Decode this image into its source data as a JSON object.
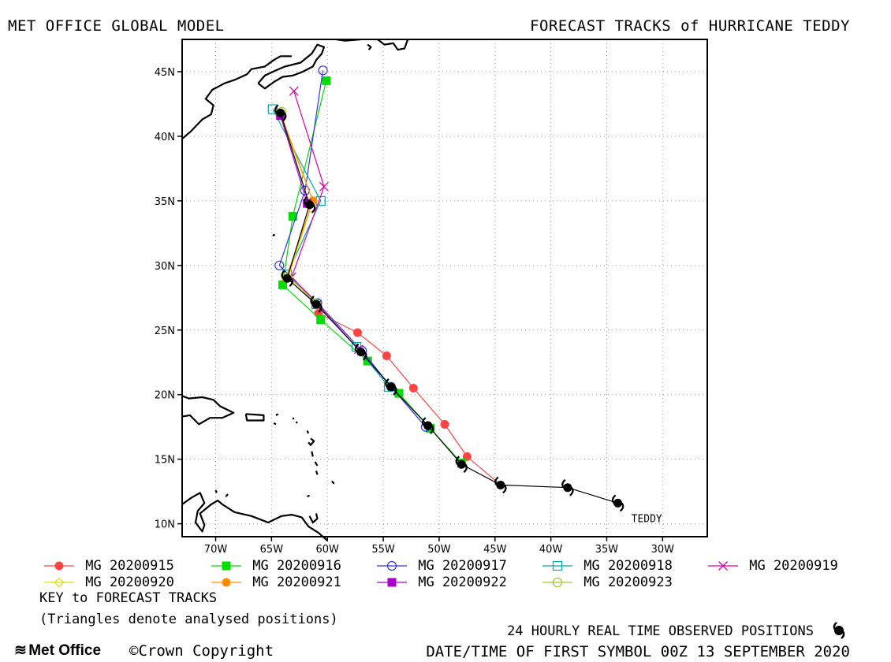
{
  "header": {
    "left_title": "MET OFFICE GLOBAL MODEL",
    "right_title": "FORECAST TRACKS of HURRICANE TEDDY"
  },
  "chart_data": {
    "type": "line",
    "title": "FORECAST TRACKS of HURRICANE TEDDY",
    "xlim": [
      -73,
      -26
    ],
    "ylim": [
      9,
      47.5
    ],
    "x_ticks": [
      -70,
      -65,
      -60,
      -55,
      -50,
      -45,
      -40,
      -35,
      -30
    ],
    "x_tick_labels": [
      "70W",
      "65W",
      "60W",
      "55W",
      "50W",
      "45W",
      "40W",
      "35W",
      "30W"
    ],
    "y_ticks": [
      10,
      15,
      20,
      25,
      30,
      35,
      40,
      45
    ],
    "y_tick_labels": [
      "10N",
      "15N",
      "20N",
      "25N",
      "30N",
      "35N",
      "40N",
      "45N"
    ],
    "grid": true,
    "storm_label": "TEDDY",
    "observed": {
      "name": "24 HOURLY REAL TIME OBSERVED POSITIONS",
      "points": [
        [
          -34.0,
          11.6
        ],
        [
          -38.5,
          12.8
        ],
        [
          -44.5,
          13.0
        ],
        [
          -48.0,
          14.6
        ],
        [
          -51.0,
          17.6
        ],
        [
          -54.3,
          20.6
        ],
        [
          -57.0,
          23.3
        ],
        [
          -61.0,
          27.0
        ],
        [
          -63.6,
          29.0
        ],
        [
          -61.6,
          34.7
        ],
        [
          -64.2,
          41.8
        ]
      ],
      "color": "#000000"
    },
    "series": [
      {
        "name": "MG 20200915",
        "color": "#ff4444",
        "marker": "filled-circle",
        "points": [
          [
            -47.5,
            15.2
          ],
          [
            -49.5,
            17.7
          ],
          [
            -52.3,
            20.5
          ],
          [
            -54.7,
            23.0
          ],
          [
            -57.3,
            24.8
          ],
          [
            -60.8,
            26.3
          ]
        ]
      },
      {
        "name": "MG 20200916",
        "color": "#00dd00",
        "marker": "filled-square",
        "points": [
          [
            -48.0,
            14.7
          ],
          [
            -50.8,
            17.4
          ],
          [
            -53.6,
            20.1
          ],
          [
            -56.4,
            22.6
          ],
          [
            -60.6,
            25.8
          ],
          [
            -64.0,
            28.5
          ],
          [
            -63.1,
            33.8
          ],
          [
            -60.1,
            44.3
          ]
        ]
      },
      {
        "name": "MG 20200917",
        "color": "#3333ee",
        "marker": "open-circle",
        "points": [
          [
            -51.2,
            17.5
          ],
          [
            -54.3,
            20.6
          ],
          [
            -56.9,
            23.4
          ],
          [
            -60.9,
            27.1
          ],
          [
            -64.3,
            30.0
          ],
          [
            -62.0,
            35.8
          ],
          [
            -60.4,
            45.1
          ]
        ]
      },
      {
        "name": "MG 20200918",
        "color": "#00aaaa",
        "marker": "open-square",
        "points": [
          [
            -54.5,
            20.6
          ],
          [
            -57.4,
            23.7
          ],
          [
            -61.0,
            27.0
          ],
          [
            -63.6,
            29.3
          ],
          [
            -60.6,
            35.0
          ],
          [
            -64.9,
            42.1
          ]
        ]
      },
      {
        "name": "MG 20200919",
        "color": "#dd00aa",
        "marker": "cross",
        "points": [
          [
            -57.2,
            23.5
          ],
          [
            -60.9,
            27.0
          ],
          [
            -63.2,
            29.1
          ],
          [
            -60.3,
            36.1
          ],
          [
            -63.0,
            43.5
          ]
        ]
      },
      {
        "name": "MG 20200920",
        "color": "#dddd00",
        "marker": "open-diamond",
        "points": [
          [
            -61.0,
            27.1
          ],
          [
            -63.5,
            29.1
          ],
          [
            -61.3,
            35.0
          ],
          [
            -64.2,
            41.6
          ]
        ]
      },
      {
        "name": "MG 20200921",
        "color": "#ff8c00",
        "marker": "filled-circle",
        "points": [
          [
            -63.7,
            29.0
          ],
          [
            -61.3,
            35.0
          ],
          [
            -64.2,
            41.8
          ]
        ]
      },
      {
        "name": "MG 20200922",
        "color": "#aa00cc",
        "marker": "filled-square",
        "points": [
          [
            -61.8,
            34.8
          ],
          [
            -64.2,
            41.6
          ]
        ]
      },
      {
        "name": "MG 20200923",
        "color": "#99cc33",
        "marker": "open-circle",
        "points": [
          [
            -64.1,
            41.9
          ]
        ]
      }
    ]
  },
  "legend_rows": [
    [
      "MG 20200915",
      "MG 20200916",
      "MG 20200917",
      "MG 20200918",
      "MG 20200919"
    ],
    [
      "MG 20200920",
      "MG 20200921",
      "MG 20200922",
      "MG 20200923"
    ]
  ],
  "notes": {
    "key": "KEY to FORECAST TRACKS",
    "triangles": "(Triangles denote analysed positions)",
    "observed": "24 HOURLY REAL TIME OBSERVED POSITIONS",
    "first_symbol": "DATE/TIME OF FIRST SYMBOL 00Z 13 SEPTEMBER 2020"
  },
  "footer": {
    "logo": "Met Office",
    "copyright": "Crown Copyright"
  }
}
